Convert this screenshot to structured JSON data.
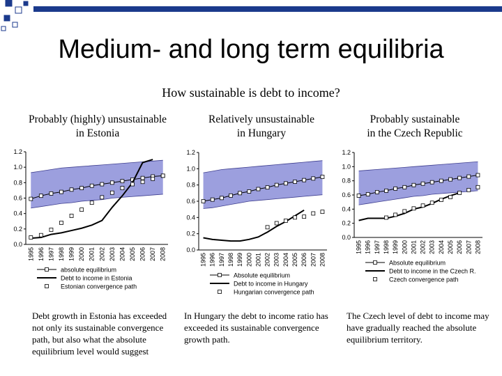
{
  "slide": {
    "title": "Medium- and long term equilibria",
    "subtitle": "How sustainable is debt to income?",
    "sections": [
      {
        "heading": [
          "Probably (highly) unsustainable",
          "in Estonia"
        ],
        "note": "Debt growth in Estonia has exceeded not only its sustainable convergence path, but also what the absolute equilibrium level would suggest"
      },
      {
        "heading": [
          "Relatively unsustainable",
          "in Hungary"
        ],
        "note": "In Hungary the debt to income ratio has exceeded its sustainable convergence growth path."
      },
      {
        "heading": [
          "Probably sustainable",
          "in the Czech Republic"
        ],
        "note": "The Czech level of debt to income may have gradually reached the absolute equilibrium territory."
      }
    ]
  },
  "colors": {
    "band": "#9c9fde",
    "band_edge": "#3f3f8f",
    "line": "#000000",
    "marker": "#ffffff",
    "deco_square": "#1b3a8c"
  },
  "chart_data": [
    {
      "type": "line",
      "title": "",
      "xlabel": "",
      "ylabel": "",
      "x": [
        "1995",
        "1996",
        "1997",
        "1998",
        "1999",
        "2000",
        "2001",
        "2002",
        "2003",
        "2004",
        "2005",
        "2006",
        "2007",
        "2008"
      ],
      "ylim": [
        0.0,
        1.2
      ],
      "yticks": [
        "0.0",
        "0.2",
        "0.4",
        "0.6",
        "0.8",
        "1.0",
        "1.2"
      ],
      "band": {
        "lower": [
          0.47,
          0.49,
          0.51,
          0.53,
          0.54,
          0.56,
          0.57,
          0.58,
          0.6,
          0.61,
          0.62,
          0.63,
          0.64,
          0.65
        ],
        "upper": [
          0.93,
          0.95,
          0.97,
          0.99,
          1.0,
          1.01,
          1.02,
          1.03,
          1.04,
          1.05,
          1.06,
          1.07,
          1.08,
          1.09
        ]
      },
      "series": [
        {
          "name": "absolute equilibrium",
          "marker": "square",
          "values": [
            0.59,
            0.63,
            0.66,
            0.68,
            0.71,
            0.73,
            0.76,
            0.78,
            0.8,
            0.82,
            0.84,
            0.86,
            0.88,
            0.89
          ]
        },
        {
          "name": "Debt to income in Estonia",
          "marker": "none",
          "values": [
            0.08,
            0.09,
            0.13,
            0.15,
            0.18,
            0.21,
            0.25,
            0.31,
            0.48,
            0.63,
            0.8,
            1.06,
            1.1,
            null
          ]
        },
        {
          "name": "Estonian convergence path",
          "marker": "square-hollow",
          "values": [
            0.09,
            0.12,
            0.19,
            0.28,
            0.37,
            0.45,
            0.54,
            0.61,
            0.67,
            0.73,
            0.78,
            0.81,
            0.85,
            0.89
          ]
        }
      ],
      "legend": "below"
    },
    {
      "type": "line",
      "title": "",
      "xlabel": "",
      "ylabel": "",
      "x": [
        "1995",
        "1996",
        "1997",
        "1998",
        "1999",
        "2000",
        "2001",
        "2002",
        "2003",
        "2004",
        "2005",
        "2006",
        "2007",
        "2008"
      ],
      "ylim": [
        0.0,
        1.2
      ],
      "yticks": [
        "0.0",
        "0.2",
        "0.4",
        "0.6",
        "0.8",
        "1.0",
        "1.2"
      ],
      "band": {
        "lower": [
          0.51,
          0.52,
          0.54,
          0.56,
          0.58,
          0.6,
          0.61,
          0.62,
          0.63,
          0.64,
          0.65,
          0.66,
          0.67,
          0.68
        ],
        "upper": [
          0.95,
          0.97,
          0.99,
          1.0,
          1.01,
          1.02,
          1.03,
          1.04,
          1.05,
          1.06,
          1.07,
          1.08,
          1.09,
          1.1
        ]
      },
      "series": [
        {
          "name": "Absolute equilibrium",
          "marker": "square",
          "values": [
            0.6,
            0.62,
            0.64,
            0.67,
            0.7,
            0.72,
            0.75,
            0.77,
            0.8,
            0.82,
            0.84,
            0.86,
            0.88,
            0.9
          ]
        },
        {
          "name": "Debt to income in Hungary",
          "marker": "none",
          "values": [
            0.15,
            0.13,
            0.12,
            0.11,
            0.11,
            0.13,
            0.16,
            0.22,
            0.29,
            0.35,
            0.42,
            0.49,
            null,
            null
          ]
        },
        {
          "name": "Hungarian convergence path",
          "marker": "square-hollow",
          "values": [
            null,
            null,
            null,
            null,
            null,
            null,
            null,
            0.28,
            0.33,
            0.36,
            0.4,
            0.41,
            0.45,
            0.47
          ]
        }
      ],
      "legend": "below"
    },
    {
      "type": "line",
      "title": "",
      "xlabel": "",
      "ylabel": "",
      "x": [
        "1995",
        "1996",
        "1997",
        "1998",
        "1999",
        "2000",
        "2001",
        "2002",
        "2003",
        "2004",
        "2005",
        "2006",
        "2007",
        "2008"
      ],
      "ylim": [
        0.0,
        1.2
      ],
      "yticks": [
        "0.0",
        "0.2",
        "0.4",
        "0.6",
        "0.8",
        "1.0",
        "1.2"
      ],
      "band": {
        "lower": [
          0.46,
          0.48,
          0.5,
          0.52,
          0.54,
          0.56,
          0.58,
          0.59,
          0.61,
          0.62,
          0.63,
          0.64,
          0.65,
          0.66
        ],
        "upper": [
          0.94,
          0.95,
          0.96,
          0.97,
          0.98,
          0.99,
          1.0,
          1.01,
          1.02,
          1.03,
          1.04,
          1.05,
          1.06,
          1.07
        ]
      },
      "series": [
        {
          "name": "Absolute equilibrium",
          "marker": "square",
          "values": [
            0.59,
            0.61,
            0.64,
            0.66,
            0.69,
            0.71,
            0.74,
            0.76,
            0.78,
            0.8,
            0.82,
            0.84,
            0.86,
            0.88
          ]
        },
        {
          "name": "Debt to income in the Czech R.",
          "marker": "none",
          "values": [
            0.24,
            0.27,
            0.27,
            0.27,
            0.3,
            0.34,
            0.4,
            0.43,
            0.48,
            0.54,
            0.59,
            0.63,
            null,
            null
          ]
        },
        {
          "name": "Czech convergence path",
          "marker": "square-hollow",
          "values": [
            null,
            null,
            null,
            0.28,
            0.32,
            0.37,
            0.41,
            0.45,
            0.49,
            0.53,
            0.57,
            0.63,
            0.67,
            0.71
          ]
        }
      ],
      "legend": "below"
    }
  ]
}
